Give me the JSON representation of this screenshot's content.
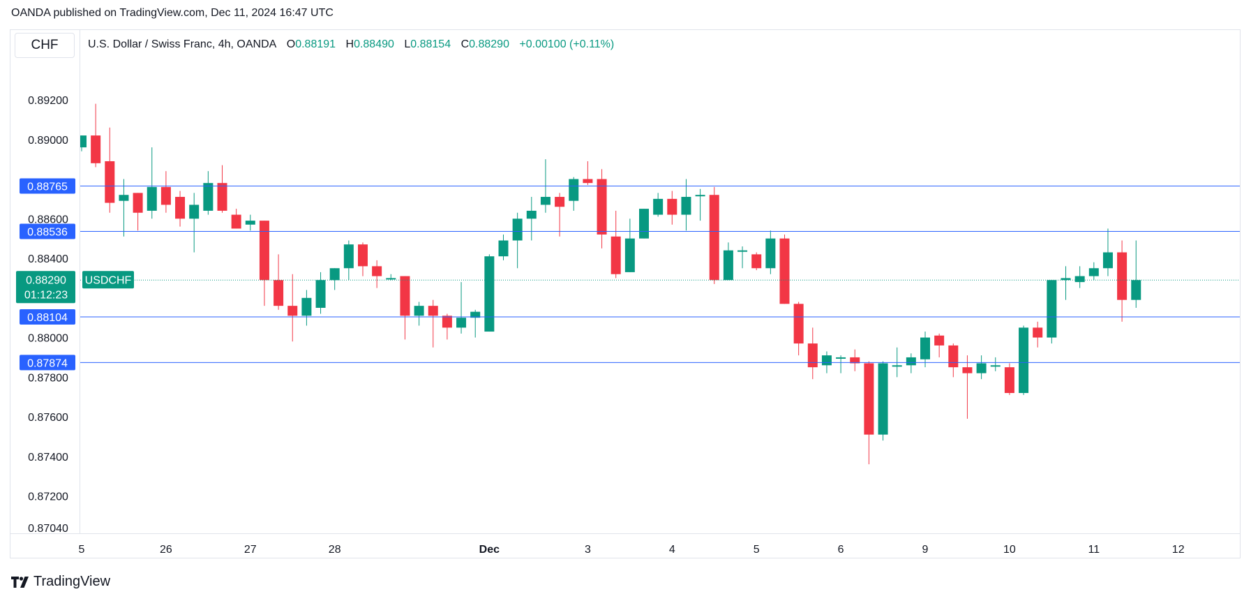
{
  "header": {
    "published": "OANDA published on TradingView.com, Dec 11, 2024 16:47 UTC"
  },
  "toolbar": {
    "currency_button": "CHF"
  },
  "legend": {
    "title": "U.S. Dollar / Swiss Franc, 4h, OANDA",
    "o_label": "O",
    "o": "0.88191",
    "h_label": "H",
    "h": "0.88490",
    "l_label": "L",
    "l": "0.88154",
    "c_label": "C",
    "c": "0.88290",
    "change": "+0.00100 (+0.11%)"
  },
  "price_tag": {
    "price": "0.88290",
    "countdown": "01:12:23",
    "symbol": "USDCHF"
  },
  "footer": {
    "brand": "TradingView"
  },
  "colors": {
    "up": "#089981",
    "down": "#f23645",
    "hline": "#2962ff",
    "grid": "#e0e3eb"
  },
  "chart_data": {
    "type": "candlestick",
    "timeframe": "4h",
    "ylim": [
      0.8702,
      0.8946
    ],
    "y_ticks": [
      "0.89200",
      "0.89000",
      "0.88600",
      "0.88400",
      "0.88000",
      "0.87800",
      "0.87600",
      "0.87400",
      "0.87200",
      "0.87040"
    ],
    "x_ticks": [
      {
        "label": "5",
        "index": 0
      },
      {
        "label": "26",
        "index": 6
      },
      {
        "label": "27",
        "index": 12
      },
      {
        "label": "28",
        "index": 18
      },
      {
        "label": "Dec",
        "index": 29
      },
      {
        "label": "3",
        "index": 36
      },
      {
        "label": "4",
        "index": 42
      },
      {
        "label": "5",
        "index": 48
      },
      {
        "label": "6",
        "index": 54
      },
      {
        "label": "9",
        "index": 60
      },
      {
        "label": "10",
        "index": 66
      },
      {
        "label": "11",
        "index": 72
      },
      {
        "label": "12",
        "index": 78
      }
    ],
    "horizontal_levels": [
      "0.88765",
      "0.88536",
      "0.88104",
      "0.87874"
    ],
    "last_price": 0.8829,
    "candles": [
      {
        "o": 0.8896,
        "h": 0.8902,
        "l": 0.8894,
        "c": 0.8902
      },
      {
        "o": 0.8902,
        "h": 0.8918,
        "l": 0.8886,
        "c": 0.8888
      },
      {
        "o": 0.8889,
        "h": 0.8906,
        "l": 0.8863,
        "c": 0.8868
      },
      {
        "o": 0.8869,
        "h": 0.888,
        "l": 0.8851,
        "c": 0.8872
      },
      {
        "o": 0.8873,
        "h": 0.8873,
        "l": 0.8854,
        "c": 0.8863
      },
      {
        "o": 0.8864,
        "h": 0.8896,
        "l": 0.886,
        "c": 0.8876
      },
      {
        "o": 0.8876,
        "h": 0.8884,
        "l": 0.8863,
        "c": 0.8867
      },
      {
        "o": 0.8871,
        "h": 0.8874,
        "l": 0.8856,
        "c": 0.886
      },
      {
        "o": 0.886,
        "h": 0.8873,
        "l": 0.8843,
        "c": 0.8867
      },
      {
        "o": 0.8864,
        "h": 0.8884,
        "l": 0.8862,
        "c": 0.8878
      },
      {
        "o": 0.8878,
        "h": 0.8887,
        "l": 0.8863,
        "c": 0.8864
      },
      {
        "o": 0.8862,
        "h": 0.8865,
        "l": 0.8855,
        "c": 0.8855
      },
      {
        "o": 0.8857,
        "h": 0.8862,
        "l": 0.8854,
        "c": 0.8859
      },
      {
        "o": 0.8859,
        "h": 0.8859,
        "l": 0.8816,
        "c": 0.8829
      },
      {
        "o": 0.8829,
        "h": 0.8842,
        "l": 0.8814,
        "c": 0.8816
      },
      {
        "o": 0.8816,
        "h": 0.8832,
        "l": 0.8798,
        "c": 0.8811
      },
      {
        "o": 0.8811,
        "h": 0.8824,
        "l": 0.8806,
        "c": 0.882
      },
      {
        "o": 0.8815,
        "h": 0.8833,
        "l": 0.8812,
        "c": 0.8829
      },
      {
        "o": 0.8829,
        "h": 0.8835,
        "l": 0.8824,
        "c": 0.8835
      },
      {
        "o": 0.8835,
        "h": 0.8849,
        "l": 0.8829,
        "c": 0.8847
      },
      {
        "o": 0.8847,
        "h": 0.8848,
        "l": 0.8831,
        "c": 0.8836
      },
      {
        "o": 0.8836,
        "h": 0.8839,
        "l": 0.8825,
        "c": 0.8831
      },
      {
        "o": 0.883,
        "h": 0.8832,
        "l": 0.8829,
        "c": 0.883
      },
      {
        "o": 0.8831,
        "h": 0.8831,
        "l": 0.8799,
        "c": 0.8811
      },
      {
        "o": 0.8811,
        "h": 0.8818,
        "l": 0.8806,
        "c": 0.8816
      },
      {
        "o": 0.8816,
        "h": 0.8819,
        "l": 0.8795,
        "c": 0.8811
      },
      {
        "o": 0.8811,
        "h": 0.8812,
        "l": 0.8799,
        "c": 0.8805
      },
      {
        "o": 0.8805,
        "h": 0.8828,
        "l": 0.8802,
        "c": 0.881
      },
      {
        "o": 0.881,
        "h": 0.8814,
        "l": 0.88,
        "c": 0.8813
      },
      {
        "o": 0.8803,
        "h": 0.8842,
        "l": 0.8803,
        "c": 0.8841
      },
      {
        "o": 0.8841,
        "h": 0.8852,
        "l": 0.8839,
        "c": 0.8849
      },
      {
        "o": 0.8849,
        "h": 0.8863,
        "l": 0.8835,
        "c": 0.886
      },
      {
        "o": 0.886,
        "h": 0.8871,
        "l": 0.8849,
        "c": 0.8864
      },
      {
        "o": 0.8867,
        "h": 0.889,
        "l": 0.8863,
        "c": 0.8871
      },
      {
        "o": 0.8871,
        "h": 0.8873,
        "l": 0.8851,
        "c": 0.8866
      },
      {
        "o": 0.8869,
        "h": 0.8881,
        "l": 0.8864,
        "c": 0.888
      },
      {
        "o": 0.888,
        "h": 0.8889,
        "l": 0.8877,
        "c": 0.8878
      },
      {
        "o": 0.888,
        "h": 0.8885,
        "l": 0.8845,
        "c": 0.8852
      },
      {
        "o": 0.8851,
        "h": 0.8864,
        "l": 0.883,
        "c": 0.8832
      },
      {
        "o": 0.8833,
        "h": 0.886,
        "l": 0.8833,
        "c": 0.885
      },
      {
        "o": 0.885,
        "h": 0.8865,
        "l": 0.885,
        "c": 0.8865
      },
      {
        "o": 0.8862,
        "h": 0.8873,
        "l": 0.8861,
        "c": 0.887
      },
      {
        "o": 0.887,
        "h": 0.8874,
        "l": 0.8857,
        "c": 0.8862
      },
      {
        "o": 0.8862,
        "h": 0.888,
        "l": 0.8854,
        "c": 0.8871
      },
      {
        "o": 0.8872,
        "h": 0.8875,
        "l": 0.8859,
        "c": 0.8872
      },
      {
        "o": 0.8872,
        "h": 0.8876,
        "l": 0.8827,
        "c": 0.8829
      },
      {
        "o": 0.8829,
        "h": 0.8848,
        "l": 0.8829,
        "c": 0.8844
      },
      {
        "o": 0.8844,
        "h": 0.8846,
        "l": 0.8835,
        "c": 0.8844
      },
      {
        "o": 0.8842,
        "h": 0.8843,
        "l": 0.8834,
        "c": 0.8835
      },
      {
        "o": 0.8835,
        "h": 0.8854,
        "l": 0.8832,
        "c": 0.885
      },
      {
        "o": 0.885,
        "h": 0.8852,
        "l": 0.8817,
        "c": 0.8817
      },
      {
        "o": 0.8817,
        "h": 0.8818,
        "l": 0.8791,
        "c": 0.8797
      },
      {
        "o": 0.8797,
        "h": 0.8805,
        "l": 0.8779,
        "c": 0.8785
      },
      {
        "o": 0.8786,
        "h": 0.8793,
        "l": 0.8782,
        "c": 0.8791
      },
      {
        "o": 0.879,
        "h": 0.8791,
        "l": 0.8782,
        "c": 0.879
      },
      {
        "o": 0.879,
        "h": 0.8794,
        "l": 0.8783,
        "c": 0.8787
      },
      {
        "o": 0.8787,
        "h": 0.8788,
        "l": 0.8736,
        "c": 0.8751
      },
      {
        "o": 0.8751,
        "h": 0.8788,
        "l": 0.8748,
        "c": 0.8787
      },
      {
        "o": 0.8786,
        "h": 0.8795,
        "l": 0.878,
        "c": 0.8786
      },
      {
        "o": 0.8786,
        "h": 0.8792,
        "l": 0.8782,
        "c": 0.879
      },
      {
        "o": 0.8789,
        "h": 0.8803,
        "l": 0.8785,
        "c": 0.88
      },
      {
        "o": 0.8801,
        "h": 0.8802,
        "l": 0.879,
        "c": 0.8796
      },
      {
        "o": 0.8796,
        "h": 0.8797,
        "l": 0.878,
        "c": 0.8785
      },
      {
        "o": 0.8785,
        "h": 0.8791,
        "l": 0.8759,
        "c": 0.8782
      },
      {
        "o": 0.8782,
        "h": 0.8791,
        "l": 0.8779,
        "c": 0.8787
      },
      {
        "o": 0.8786,
        "h": 0.879,
        "l": 0.8783,
        "c": 0.8786
      },
      {
        "o": 0.8785,
        "h": 0.8787,
        "l": 0.8771,
        "c": 0.8772
      },
      {
        "o": 0.8772,
        "h": 0.8806,
        "l": 0.8771,
        "c": 0.8805
      },
      {
        "o": 0.8805,
        "h": 0.8808,
        "l": 0.8795,
        "c": 0.88
      },
      {
        "o": 0.88,
        "h": 0.8829,
        "l": 0.8797,
        "c": 0.8829
      },
      {
        "o": 0.8829,
        "h": 0.8836,
        "l": 0.8819,
        "c": 0.883
      },
      {
        "o": 0.8828,
        "h": 0.8836,
        "l": 0.8825,
        "c": 0.8831
      },
      {
        "o": 0.8831,
        "h": 0.8838,
        "l": 0.8829,
        "c": 0.8835
      },
      {
        "o": 0.8835,
        "h": 0.8855,
        "l": 0.8831,
        "c": 0.8843
      },
      {
        "o": 0.8843,
        "h": 0.8849,
        "l": 0.8808,
        "c": 0.8819
      },
      {
        "o": 0.8819,
        "h": 0.8849,
        "l": 0.8815,
        "c": 0.8829
      }
    ]
  }
}
